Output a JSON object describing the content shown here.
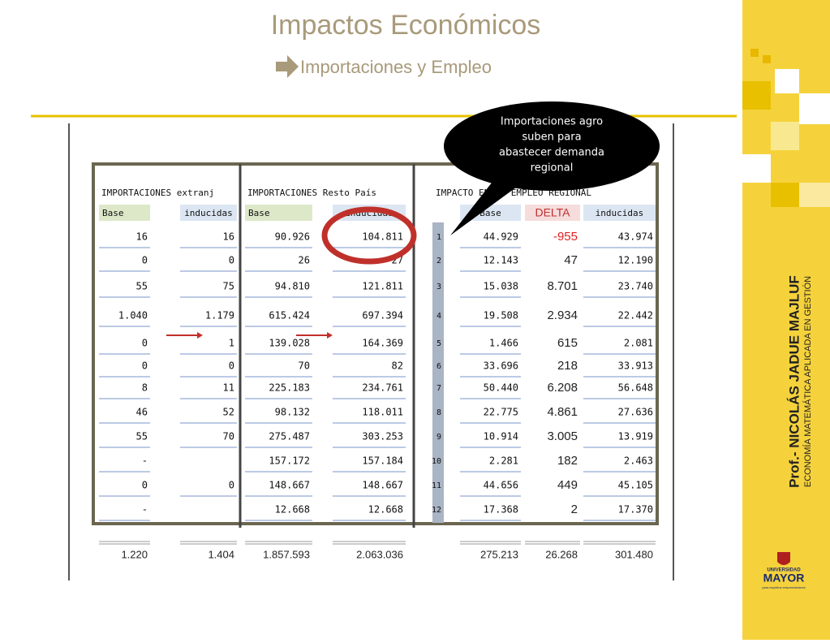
{
  "slide": {
    "title": "Impactos Económicos",
    "subtitle": "Importaciones y Empleo"
  },
  "callout": {
    "lines": [
      "Importaciones agro",
      "suben para",
      "abastecer demanda",
      "regional"
    ]
  },
  "table": {
    "group_headers": [
      "IMPORTACIONES extranj",
      "IMPORTACIONES Resto País",
      "IMPACTO EN EL EMPLEO REGIONAL"
    ],
    "column_headers": [
      "Base",
      "inducidas",
      "Base",
      "inducidas",
      null,
      "Base",
      "DELTA",
      "inducidas"
    ],
    "rows": [
      [
        "16",
        "16",
        "90.926",
        "104.811",
        "1",
        "44.929",
        "-955",
        "43.974"
      ],
      [
        "0",
        "0",
        "26",
        "27",
        "2",
        "12.143",
        "47",
        "12.190"
      ],
      [
        "55",
        "75",
        "94.810",
        "121.811",
        "3",
        "15.038",
        "8.701",
        "23.740"
      ],
      [
        "1.040",
        "1.179",
        "615.424",
        "697.394",
        "4",
        "19.508",
        "2.934",
        "22.442"
      ],
      [
        "0",
        "1",
        "139.028",
        "164.369",
        "5",
        "1.466",
        "615",
        "2.081"
      ],
      [
        "0",
        "0",
        "70",
        "82",
        "6",
        "33.696",
        "218",
        "33.913"
      ],
      [
        "8",
        "11",
        "225.183",
        "234.761",
        "7",
        "50.440",
        "6.208",
        "56.648"
      ],
      [
        "46",
        "52",
        "98.132",
        "118.011",
        "8",
        "22.775",
        "4.861",
        "27.636"
      ],
      [
        "55",
        "70",
        "275.487",
        "303.253",
        "9",
        "10.914",
        "3.005",
        "13.919"
      ],
      [
        "-",
        null,
        "157.172",
        "157.184",
        "10",
        "2.281",
        "182",
        "2.463"
      ],
      [
        "0",
        "0",
        "148.667",
        "148.667",
        "11",
        "44.656",
        "449",
        "45.105"
      ],
      [
        "-",
        null,
        "12.668",
        "12.668",
        "12",
        "17.368",
        "2",
        "17.370"
      ]
    ],
    "totals": [
      "1.220",
      "1.404",
      "1.857.593",
      "2.063.036",
      null,
      "275.213",
      "26.268",
      "301.480"
    ]
  },
  "sidebar": {
    "author": "Prof.- NICOLÁS JADUE MAJLUF",
    "subject": "ECONOMÍA MATEMÁTICA APLICADA EN GESTIÓN",
    "logo_top": "UNIVERSIDAD",
    "logo_main": "MAYOR",
    "logo_tagline": "para espíritus emprendedores"
  }
}
